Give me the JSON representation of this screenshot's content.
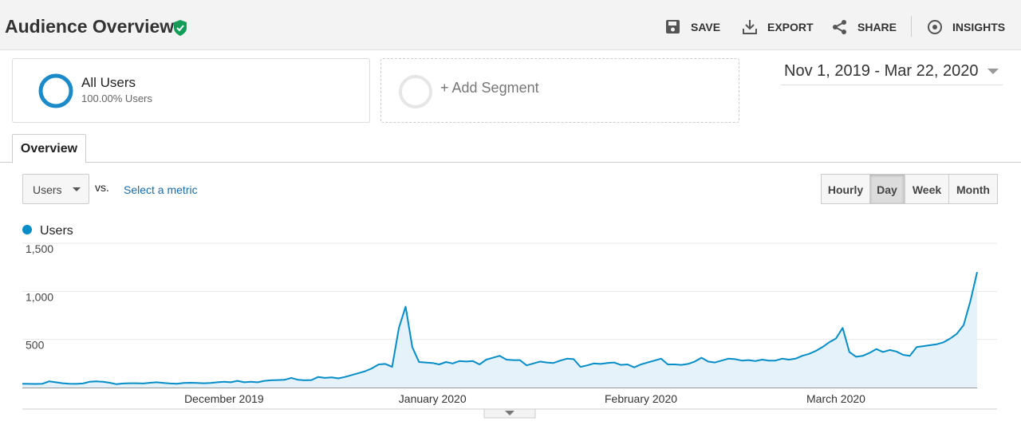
{
  "header": {
    "title": "Audience Overview",
    "actions": [
      "SAVE",
      "EXPORT",
      "SHARE",
      "INSIGHTS"
    ]
  },
  "segments": {
    "active": {
      "name": "All Users",
      "detail": "100.00% Users"
    },
    "add": "+ Add Segment"
  },
  "date_range": "Nov 1, 2019 - Mar 22, 2020",
  "tab": "Overview",
  "controls": {
    "metric": "Users",
    "vs": "vs.",
    "select_metric": "Select a metric",
    "granularity": [
      "Hourly",
      "Day",
      "Week",
      "Month"
    ],
    "active_granularity": "Day"
  },
  "chart_data": {
    "type": "line",
    "legend": "top-left",
    "grid": true,
    "ylim": [
      0,
      1500
    ],
    "yticks": [
      500,
      {
        "value": 1000,
        "label": "1,000"
      },
      {
        "value": 1500,
        "label": "1,500"
      }
    ],
    "categories": [
      null,
      null,
      null,
      null,
      null,
      null,
      null,
      null,
      null,
      null,
      null,
      null,
      null,
      null,
      null,
      null,
      null,
      null,
      null,
      null,
      null,
      null,
      null,
      null,
      null,
      null,
      null,
      null,
      null,
      null,
      "December 2019",
      null,
      null,
      null,
      null,
      null,
      null,
      null,
      null,
      null,
      null,
      null,
      null,
      null,
      null,
      null,
      null,
      null,
      null,
      null,
      null,
      null,
      null,
      null,
      null,
      null,
      null,
      null,
      null,
      null,
      null,
      "January 2020",
      null,
      null,
      null,
      null,
      null,
      null,
      null,
      null,
      null,
      null,
      null,
      null,
      null,
      null,
      null,
      null,
      null,
      null,
      null,
      null,
      null,
      null,
      null,
      null,
      null,
      null,
      null,
      null,
      null,
      null,
      "February 2020",
      null,
      null,
      null,
      null,
      null,
      null,
      null,
      null,
      null,
      null,
      null,
      null,
      null,
      null,
      null,
      null,
      null,
      null,
      null,
      null,
      null,
      null,
      null,
      null,
      null,
      null,
      null,
      null,
      "March 2020",
      null,
      null,
      null,
      null,
      null,
      null,
      null,
      null,
      null,
      null,
      null,
      null,
      null,
      null,
      null,
      null,
      null,
      null,
      null,
      null,
      null
    ],
    "series": [
      {
        "name": "Users",
        "color": "#058dc7",
        "values": [
          40,
          38,
          37,
          40,
          65,
          55,
          45,
          40,
          38,
          42,
          60,
          65,
          60,
          50,
          35,
          42,
          45,
          45,
          42,
          50,
          55,
          48,
          42,
          40,
          48,
          50,
          48,
          45,
          47,
          55,
          60,
          55,
          70,
          55,
          60,
          55,
          70,
          75,
          78,
          80,
          100,
          80,
          75,
          78,
          110,
          100,
          105,
          95,
          110,
          130,
          150,
          170,
          200,
          240,
          245,
          215,
          620,
          840,
          420,
          265,
          260,
          255,
          240,
          265,
          250,
          275,
          270,
          275,
          240,
          290,
          310,
          330,
          290,
          285,
          285,
          230,
          250,
          270,
          260,
          255,
          280,
          300,
          295,
          215,
          230,
          250,
          245,
          255,
          260,
          235,
          240,
          210,
          240,
          260,
          280,
          300,
          240,
          240,
          235,
          245,
          270,
          310,
          270,
          260,
          280,
          300,
          295,
          280,
          285,
          275,
          290,
          280,
          280,
          300,
          290,
          300,
          330,
          350,
          380,
          420,
          470,
          510,
          620,
          370,
          320,
          330,
          360,
          400,
          370,
          390,
          375,
          340,
          330,
          420,
          430,
          440,
          450,
          470,
          510,
          560,
          650,
          900,
          1200
        ]
      }
    ]
  }
}
